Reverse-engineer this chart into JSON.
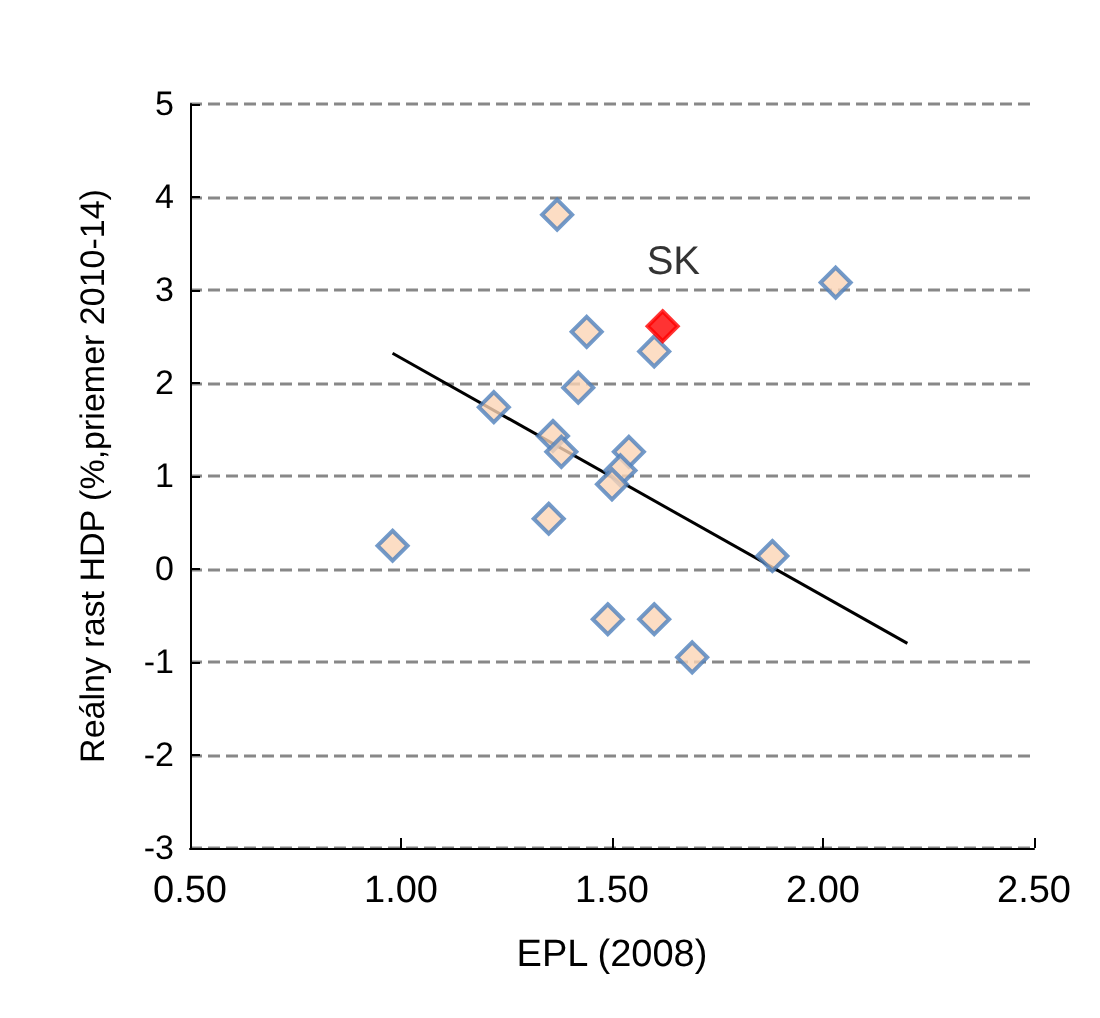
{
  "chart_data": {
    "type": "scatter",
    "xlabel": "EPL (2008)",
    "ylabel": "Reálny rast HDP (%,priemer 2010-14)",
    "xlim": [
      0.5,
      2.5
    ],
    "xticks": [
      {
        "value": 0.5,
        "label": "0.50"
      },
      {
        "value": 1,
        "label": "1.00"
      },
      {
        "value": 1.5,
        "label": "1.50"
      },
      {
        "value": 2,
        "label": "2.00"
      },
      {
        "value": 2.5,
        "label": "2.50"
      }
    ],
    "ylim": [
      -3,
      5
    ],
    "yticks": [
      -3,
      -2,
      -1,
      0,
      1,
      2,
      3,
      4,
      5
    ],
    "grid": "y",
    "marker": "diamond",
    "series": [
      {
        "color": "#fbd5b5",
        "x": [
          0.98,
          1.37,
          1.44,
          1.42,
          1.22,
          1.6,
          2.03,
          1.36,
          1.38,
          1.35,
          1.54,
          1.52,
          1.5,
          1.49,
          1.6,
          1.69,
          1.88
        ],
        "values": [
          0.25,
          3.81,
          2.55,
          1.95,
          1.74,
          2.34,
          3.08,
          1.43,
          1.26,
          0.54,
          1.26,
          1.06,
          0.91,
          -0.54,
          -0.54,
          -0.95,
          0.14
        ]
      },
      {
        "color": "#ff0000",
        "x": [
          1.62
        ],
        "values": [
          2.61
        ]
      },
      {
        "type": "line",
        "color": "#000000",
        "marker": "none",
        "x": [
          0.98,
          2.2
        ],
        "values": [
          2.32,
          -0.8
        ]
      }
    ],
    "annotations": [
      {
        "text": "SK",
        "x": 1.62,
        "y": 2.61
      }
    ]
  }
}
